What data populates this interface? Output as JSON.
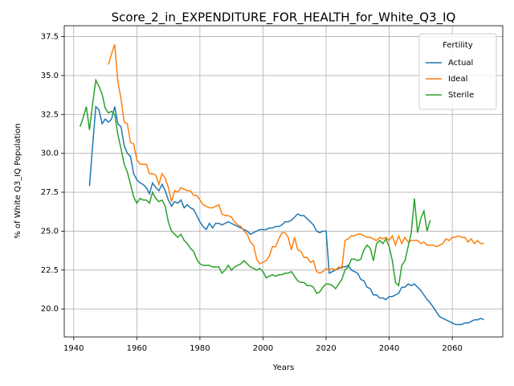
{
  "chart_data": {
    "type": "line",
    "title": "Score_2_in_EXPENDITURE_FOR_HEALTH_for_White_Q3_IQ",
    "xlabel": "Years",
    "ylabel": "% of White Q3_IQ Population",
    "legend_title": "Fertility",
    "legend": "upper right",
    "grid": true,
    "xlim": [
      1937,
      2076
    ],
    "ylim": [
      18.2,
      38.2
    ],
    "xticks": [
      1940,
      1960,
      1980,
      2000,
      2020,
      2040,
      2060
    ],
    "yticks": [
      {
        "value": 20.0,
        "label": "20.0"
      },
      22.5,
      {
        "value": 25.0,
        "label": "25.0"
      },
      27.5,
      {
        "value": 30.0,
        "label": "30.0"
      },
      32.5,
      {
        "value": 35.0,
        "label": "35.0"
      },
      37.5
    ],
    "x": [
      1942,
      1943,
      1944,
      1945,
      1946,
      1947,
      1948,
      1949,
      1950,
      1951,
      1952,
      1953,
      1954,
      1955,
      1956,
      1957,
      1958,
      1959,
      1960,
      1961,
      1962,
      1963,
      1964,
      1965,
      1966,
      1967,
      1968,
      1969,
      1970,
      1971,
      1972,
      1973,
      1974,
      1975,
      1976,
      1977,
      1978,
      1979,
      1980,
      1981,
      1982,
      1983,
      1984,
      1985,
      1986,
      1987,
      1988,
      1989,
      1990,
      1991,
      1992,
      1993,
      1994,
      1995,
      1996,
      1997,
      1998,
      1999,
      2000,
      2001,
      2002,
      2003,
      2004,
      2005,
      2006,
      2007,
      2008,
      2009,
      2010,
      2011,
      2012,
      2013,
      2014,
      2015,
      2016,
      2017,
      2018,
      2019,
      2020,
      2021,
      2022,
      2023,
      2024,
      2025,
      2026,
      2027,
      2028,
      2029,
      2030,
      2031,
      2032,
      2033,
      2034,
      2035,
      2036,
      2037,
      2038,
      2039,
      2040,
      2041,
      2042,
      2043,
      2044,
      2045,
      2046,
      2047,
      2048,
      2049,
      2050,
      2051,
      2052,
      2053,
      2054,
      2055,
      2056,
      2057,
      2058,
      2059,
      2060,
      2061,
      2062,
      2063,
      2064,
      2065,
      2066,
      2067,
      2068,
      2069,
      2070
    ],
    "series": [
      {
        "name": "Actual",
        "color": "#1f77b4",
        "values": [
          null,
          null,
          null,
          27.9,
          30.5,
          33.0,
          32.8,
          31.9,
          32.2,
          32.0,
          32.2,
          33.0,
          31.9,
          31.7,
          30.5,
          30.0,
          29.8,
          28.7,
          28.3,
          28.1,
          28.0,
          27.8,
          27.4,
          28.1,
          27.8,
          27.6,
          28.0,
          27.6,
          27.0,
          26.6,
          26.9,
          26.8,
          27.0,
          26.5,
          26.7,
          26.5,
          26.4,
          26.0,
          25.6,
          25.3,
          25.1,
          25.5,
          25.2,
          25.5,
          25.5,
          25.4,
          25.5,
          25.6,
          25.5,
          25.4,
          25.3,
          25.2,
          25.1,
          25.0,
          24.8,
          24.9,
          25.0,
          25.1,
          25.1,
          25.1,
          25.2,
          25.2,
          25.3,
          25.3,
          25.4,
          25.6,
          25.6,
          25.7,
          25.9,
          26.1,
          26.0,
          26.0,
          25.8,
          25.6,
          25.4,
          25.0,
          24.9,
          25.0,
          25.0,
          22.3,
          22.4,
          22.5,
          22.6,
          22.7,
          22.7,
          22.8,
          22.5,
          22.4,
          22.3,
          21.9,
          21.8,
          21.4,
          21.3,
          20.9,
          20.9,
          20.7,
          20.7,
          20.6,
          20.8,
          20.8,
          20.9,
          21.0,
          21.4,
          21.4,
          21.6,
          21.5,
          21.6,
          21.4,
          21.2,
          20.9,
          20.6,
          20.4,
          20.1,
          19.8,
          19.5,
          19.4,
          19.3,
          19.2,
          19.1,
          19.0,
          19.0,
          19.0,
          19.1,
          19.1,
          19.2,
          19.3,
          19.3,
          19.4,
          19.3
        ]
      },
      {
        "name": "Ideal",
        "color": "#ff7f0e",
        "values": [
          null,
          null,
          null,
          null,
          null,
          null,
          null,
          null,
          null,
          35.7,
          36.4,
          37.0,
          34.6,
          33.5,
          32.0,
          31.9,
          30.7,
          30.6,
          29.6,
          29.3,
          29.3,
          29.3,
          28.7,
          28.7,
          28.6,
          28.0,
          28.7,
          28.4,
          27.8,
          26.9,
          27.6,
          27.5,
          27.8,
          27.7,
          27.6,
          27.6,
          27.3,
          27.3,
          27.0,
          26.7,
          26.6,
          26.5,
          26.5,
          26.6,
          26.7,
          26.1,
          26.0,
          26.0,
          25.9,
          25.6,
          25.4,
          25.3,
          25.0,
          24.8,
          24.3,
          24.1,
          23.2,
          22.9,
          23.0,
          23.1,
          23.4,
          24.0,
          24.0,
          24.5,
          24.9,
          24.9,
          24.6,
          23.8,
          24.6,
          23.8,
          23.7,
          23.3,
          23.3,
          23.0,
          23.1,
          22.4,
          22.3,
          22.4,
          22.6,
          22.5,
          22.6,
          22.5,
          22.7,
          22.6,
          24.4,
          24.5,
          24.7,
          24.7,
          24.8,
          24.8,
          24.7,
          24.6,
          24.6,
          24.5,
          24.4,
          24.6,
          24.5,
          24.6,
          24.4,
          24.7,
          24.1,
          24.7,
          24.2,
          24.6,
          24.3,
          24.4,
          24.4,
          24.4,
          24.2,
          24.3,
          24.1,
          24.1,
          24.1,
          24.0,
          24.1,
          24.2,
          24.5,
          24.4,
          24.6,
          24.6,
          24.7,
          24.6,
          24.6,
          24.3,
          24.5,
          24.2,
          24.4,
          24.2,
          24.2
        ]
      },
      {
        "name": "Sterile",
        "color": "#2ca02c",
        "values": [
          31.7,
          32.3,
          33.0,
          31.5,
          33.2,
          34.7,
          34.3,
          33.8,
          32.9,
          32.6,
          32.7,
          32.5,
          31.2,
          30.3,
          29.3,
          28.8,
          28.0,
          27.2,
          26.8,
          27.1,
          27.0,
          27.0,
          26.8,
          27.5,
          27.1,
          26.9,
          27.0,
          26.6,
          25.6,
          25.0,
          24.8,
          24.6,
          24.8,
          24.4,
          24.2,
          23.9,
          23.7,
          23.2,
          22.9,
          22.8,
          22.8,
          22.8,
          22.7,
          22.7,
          22.7,
          22.3,
          22.5,
          22.8,
          22.5,
          22.7,
          22.8,
          22.9,
          23.1,
          22.9,
          22.7,
          22.6,
          22.5,
          22.6,
          22.4,
          22.0,
          22.1,
          22.2,
          22.1,
          22.2,
          22.2,
          22.3,
          22.3,
          22.4,
          22.1,
          21.8,
          21.7,
          21.7,
          21.5,
          21.5,
          21.4,
          21.0,
          21.1,
          21.4,
          21.6,
          21.6,
          21.5,
          21.3,
          21.6,
          21.9,
          22.5,
          22.7,
          23.2,
          23.2,
          23.1,
          23.2,
          23.8,
          24.1,
          23.9,
          23.1,
          24.2,
          24.4,
          24.2,
          24.5,
          24.0,
          23.1,
          21.7,
          21.5,
          22.8,
          23.1,
          24.0,
          24.9,
          27.1,
          24.9,
          25.8,
          26.3,
          25.0,
          25.7,
          null,
          null,
          null,
          null,
          null,
          null,
          null,
          null,
          null,
          null,
          null,
          null,
          null,
          null,
          null,
          null,
          null
        ]
      }
    ]
  }
}
